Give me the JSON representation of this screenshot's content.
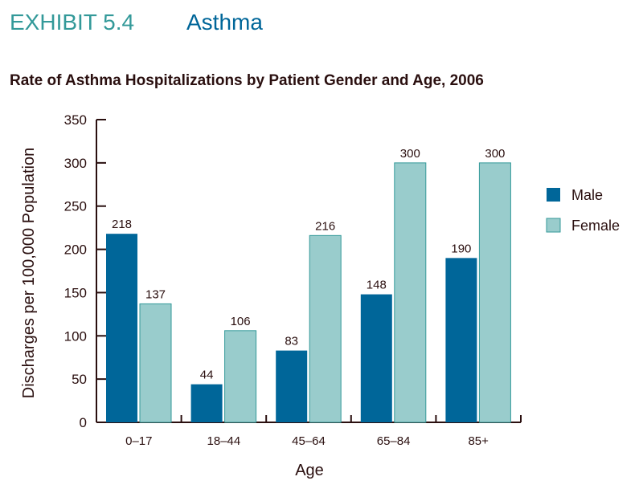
{
  "header": {
    "exhibit": "EXHIBIT 5.4",
    "topic": "Asthma"
  },
  "chart_data": {
    "type": "bar",
    "title": "Rate of Asthma Hospitalizations by Patient Gender and Age, 2006",
    "xlabel": "Age",
    "ylabel": "Discharges per 100,000 Population",
    "categories": [
      "0–17",
      "18–44",
      "45–64",
      "65–84",
      "85+"
    ],
    "series": [
      {
        "name": "Male",
        "values": [
          218,
          44,
          83,
          148,
          190
        ],
        "color": "#006699"
      },
      {
        "name": "Female",
        "values": [
          137,
          106,
          216,
          300,
          300
        ],
        "color": "#99CCCC"
      }
    ],
    "ylim": [
      0,
      350
    ],
    "yticks": [
      0,
      50,
      100,
      150,
      200,
      250,
      300,
      350
    ],
    "grid": false,
    "legend": "right"
  }
}
